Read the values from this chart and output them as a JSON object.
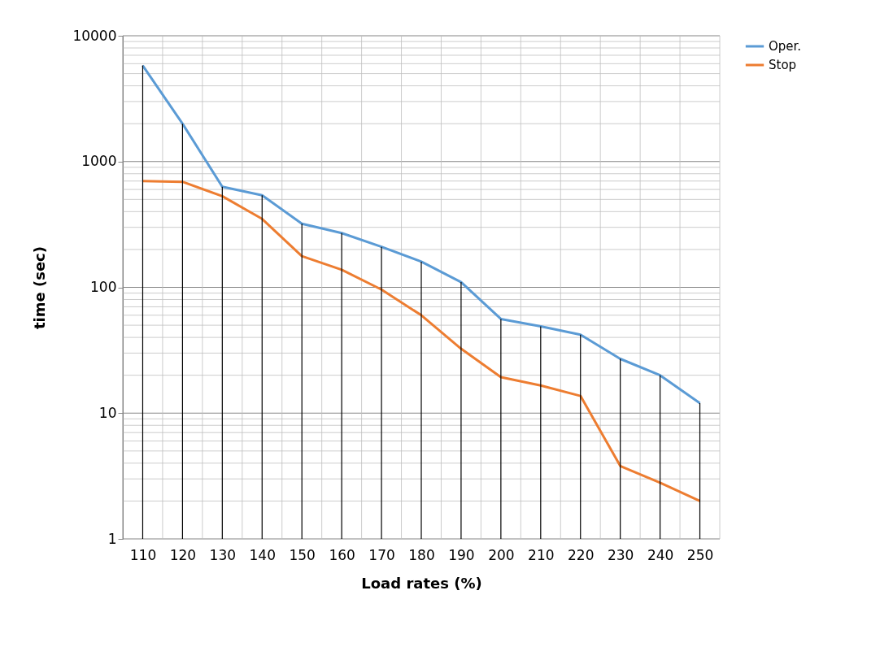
{
  "chart_data": {
    "type": "line",
    "xlabel": "Load rates (%)",
    "ylabel": "time (sec)",
    "categories": [
      "110",
      "120",
      "130",
      "140",
      "150",
      "160",
      "170",
      "180",
      "190",
      "200",
      "210",
      "220",
      "230",
      "240",
      "250"
    ],
    "series": [
      {
        "name": "Oper.",
        "color": "#5b9bd5",
        "values": [
          5800,
          2000,
          630,
          540,
          320,
          270,
          210,
          160,
          110,
          56,
          49,
          42,
          27,
          20,
          12
        ],
        "errors": [
          [
            1,
            5800
          ],
          [
            1,
            2000
          ],
          [
            1,
            630
          ],
          [
            1,
            540
          ],
          [
            1,
            320
          ],
          [
            1,
            270
          ],
          [
            1,
            210
          ],
          [
            1,
            160
          ],
          [
            1,
            110
          ],
          [
            1,
            56
          ],
          [
            1,
            49
          ],
          [
            1,
            42
          ],
          [
            1,
            27
          ],
          [
            1,
            20
          ],
          [
            1,
            12
          ]
        ]
      },
      {
        "name": "Stop",
        "color": "#ed7d31",
        "values": [
          700,
          690,
          530,
          350,
          177,
          138,
          96,
          60,
          32.5,
          19.3,
          16.6,
          13.7,
          3.8,
          2.8,
          2.0
        ]
      }
    ],
    "ylim": [
      1,
      10000
    ],
    "yticks": [
      1,
      10,
      100,
      1000,
      10000
    ],
    "log": true,
    "grid": true,
    "legend": "right",
    "marker": "none",
    "line_style": "solid"
  }
}
